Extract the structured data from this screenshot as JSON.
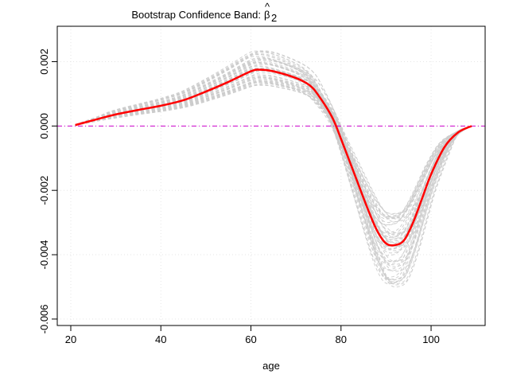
{
  "chart_data": {
    "type": "line",
    "title": "Bootstrap Confidence Band:",
    "title_symbol": "β",
    "title_hat": "^",
    "title_subscript": "2",
    "xlabel": "age",
    "ylabel": "",
    "xlim": [
      17,
      112
    ],
    "ylim": [
      -0.0062,
      0.0031
    ],
    "x_ticks": [
      20,
      40,
      60,
      80,
      100
    ],
    "y_ticks": [
      -0.006,
      -0.004,
      -0.002,
      0.0,
      0.002
    ],
    "y_tick_labels": [
      "-0.006",
      "-0.004",
      "-0.002",
      "0.000",
      "0.002"
    ],
    "grid": true,
    "reference_line": {
      "y": 0,
      "color": "#cc00cc",
      "style": "dash-dot"
    },
    "main_series": {
      "color": "#ff0000",
      "x": [
        21,
        25,
        30,
        35,
        40,
        45,
        50,
        55,
        60,
        62,
        65,
        70,
        73,
        75,
        78,
        80,
        83,
        86,
        88,
        90,
        92,
        94,
        96,
        98,
        100,
        103,
        106,
        109
      ],
      "y": [
        3e-05,
        0.00018,
        0.00036,
        0.0005,
        0.00063,
        0.0008,
        0.00107,
        0.00137,
        0.0017,
        0.00175,
        0.0017,
        0.00149,
        0.00127,
        0.00095,
        0.00028,
        -0.0004,
        -0.0015,
        -0.0026,
        -0.00325,
        -0.00365,
        -0.0037,
        -0.00355,
        -0.003,
        -0.00225,
        -0.0015,
        -0.00065,
        -0.0002,
        0.0
      ]
    },
    "bootstrap_band": {
      "color": "#cccccc",
      "count": 60,
      "description_hidden": true
    }
  }
}
